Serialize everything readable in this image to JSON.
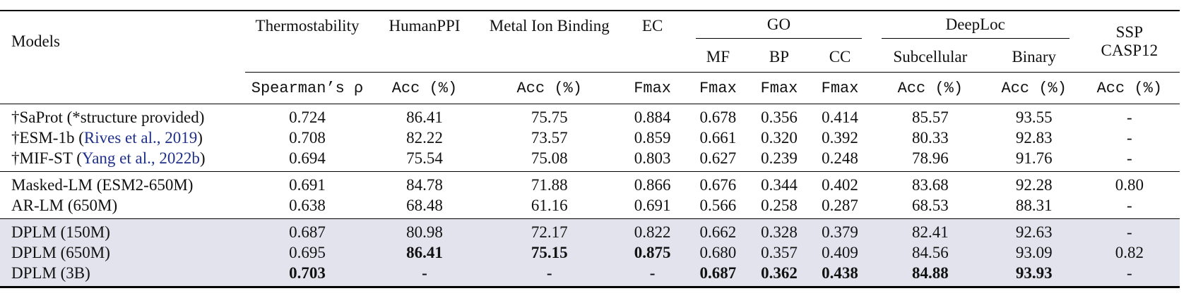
{
  "header": {
    "models": "Models",
    "thermo": "Thermostability",
    "humanppi": "HumanPPI",
    "metal": "Metal Ion Binding",
    "ec": "EC",
    "go": "GO",
    "go_mf": "MF",
    "go_bp": "BP",
    "go_cc": "CC",
    "deeploc": "DeepLoc",
    "subcell": "Subcellular",
    "binary": "Binary",
    "ssp_line1": "SSP",
    "ssp_line2": "CASP12",
    "m_thermo": "Spearman’s ρ",
    "m_humanppi": "Acc (%)",
    "m_metal": "Acc (%)",
    "m_ec": "Fmax",
    "m_mf": "Fmax",
    "m_bp": "Fmax",
    "m_cc": "Fmax",
    "m_subcell": "Acc (%)",
    "m_binary": "Acc (%)",
    "m_ssp": "Acc (%)"
  },
  "rows": [
    {
      "name": "†SaProt (*structure provided)",
      "cite": "",
      "cite_after": "",
      "vals": [
        "0.724",
        "86.41",
        "75.75",
        "0.884",
        "0.678",
        "0.356",
        "0.414",
        "85.57",
        "93.55",
        "-"
      ]
    },
    {
      "name": "†ESM-1b (",
      "cite": "Rives et al., 2019",
      "cite_after": ")",
      "vals": [
        "0.708",
        "82.22",
        "73.57",
        "0.859",
        "0.661",
        "0.320",
        "0.392",
        "80.33",
        "92.83",
        "-"
      ]
    },
    {
      "name": "†MIF-ST (",
      "cite": "Yang et al., 2022b",
      "cite_after": ")",
      "vals": [
        "0.694",
        "75.54",
        "75.08",
        "0.803",
        "0.627",
        "0.239",
        "0.248",
        "78.96",
        "91.76",
        "-"
      ]
    },
    {
      "name": "Masked-LM (ESM2-650M)",
      "cite": "",
      "cite_after": "",
      "vals": [
        "0.691",
        "84.78",
        "71.88",
        "0.866",
        "0.676",
        "0.344",
        "0.402",
        "83.68",
        "92.28",
        "0.80"
      ]
    },
    {
      "name_sc": "AR",
      "name": "-LM (650M)",
      "cite": "",
      "cite_after": "",
      "vals": [
        "0.638",
        "68.48",
        "61.16",
        "0.691",
        "0.566",
        "0.258",
        "0.287",
        "68.53",
        "88.31",
        "-"
      ]
    },
    {
      "name": "DPLM (150M)",
      "cite": "",
      "cite_after": "",
      "vals": [
        "0.687",
        "80.98",
        "72.17",
        "0.822",
        "0.662",
        "0.328",
        "0.379",
        "82.41",
        "92.63",
        "-"
      ]
    },
    {
      "name": "DPLM (650M)",
      "cite": "",
      "cite_after": "",
      "vals": [
        "0.695",
        "86.41",
        "75.15",
        "0.875",
        "0.680",
        "0.357",
        "0.409",
        "84.56",
        "93.09",
        "0.82"
      ]
    },
    {
      "name": "DPLM (3B)",
      "cite": "",
      "cite_after": "",
      "vals": [
        "0.703",
        "-",
        "-",
        "-",
        "0.687",
        "0.362",
        "0.438",
        "84.88",
        "93.93",
        "-"
      ]
    }
  ]
}
